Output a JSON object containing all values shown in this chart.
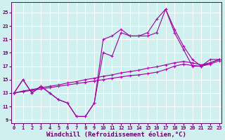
{
  "background_color": "#cff0ee",
  "grid_color": "#ffffff",
  "line_color": "#990099",
  "marker_color": "#cc00cc",
  "xlabel": "Windchill (Refroidissement éolien,°C)",
  "xlabel_fontsize": 6.5,
  "yticks": [
    9,
    11,
    13,
    15,
    17,
    19,
    21,
    23,
    25
  ],
  "xticks": [
    0,
    1,
    2,
    3,
    4,
    5,
    6,
    7,
    8,
    9,
    10,
    11,
    12,
    13,
    14,
    15,
    16,
    17,
    18,
    19,
    20,
    21,
    22,
    23
  ],
  "xlim": [
    -0.3,
    23.3
  ],
  "ylim": [
    8.5,
    26.5
  ],
  "series": [
    {
      "x": [
        0,
        1,
        2,
        3,
        4,
        5,
        6,
        7,
        8,
        9,
        10,
        11,
        12,
        13,
        14,
        15,
        16,
        17,
        18,
        19,
        20,
        21,
        22,
        23
      ],
      "y": [
        13,
        15,
        13,
        14,
        13,
        12,
        11.5,
        9.5,
        9.5,
        11.5,
        19,
        18.5,
        22,
        21.5,
        21.5,
        21.5,
        22,
        25.5,
        22,
        19.5,
        17,
        17,
        18,
        18
      ]
    },
    {
      "x": [
        0,
        1,
        2,
        3,
        4,
        5,
        6,
        7,
        8,
        9,
        10,
        11,
        12,
        13,
        14,
        15,
        16,
        17,
        18,
        19,
        20,
        21,
        22,
        23
      ],
      "y": [
        13,
        15,
        13,
        14,
        13,
        12,
        11.5,
        9.5,
        9.5,
        11.5,
        21,
        21.5,
        22.5,
        21.5,
        21.5,
        22,
        24,
        25.5,
        22.5,
        20,
        18,
        17,
        17.5,
        18
      ]
    },
    {
      "x": [
        0,
        1,
        2,
        3,
        4,
        5,
        6,
        7,
        8,
        9,
        10,
        11,
        12,
        13,
        14,
        15,
        16,
        17,
        18,
        19,
        20,
        21,
        22,
        23
      ],
      "y": [
        13.0,
        13.3,
        13.5,
        13.8,
        14.0,
        14.2,
        14.5,
        14.7,
        15.0,
        15.2,
        15.5,
        15.7,
        16.0,
        16.2,
        16.4,
        16.7,
        16.9,
        17.2,
        17.5,
        17.7,
        17.5,
        17.2,
        17.5,
        18.0
      ]
    },
    {
      "x": [
        0,
        1,
        2,
        3,
        4,
        5,
        6,
        7,
        8,
        9,
        10,
        11,
        12,
        13,
        14,
        15,
        16,
        17,
        18,
        19,
        20,
        21,
        22,
        23
      ],
      "y": [
        13.0,
        13.2,
        13.4,
        13.6,
        13.8,
        14.0,
        14.2,
        14.4,
        14.6,
        14.8,
        15.0,
        15.2,
        15.4,
        15.6,
        15.7,
        15.9,
        16.1,
        16.5,
        17.0,
        17.3,
        17.1,
        17.0,
        17.3,
        17.8
      ]
    }
  ]
}
